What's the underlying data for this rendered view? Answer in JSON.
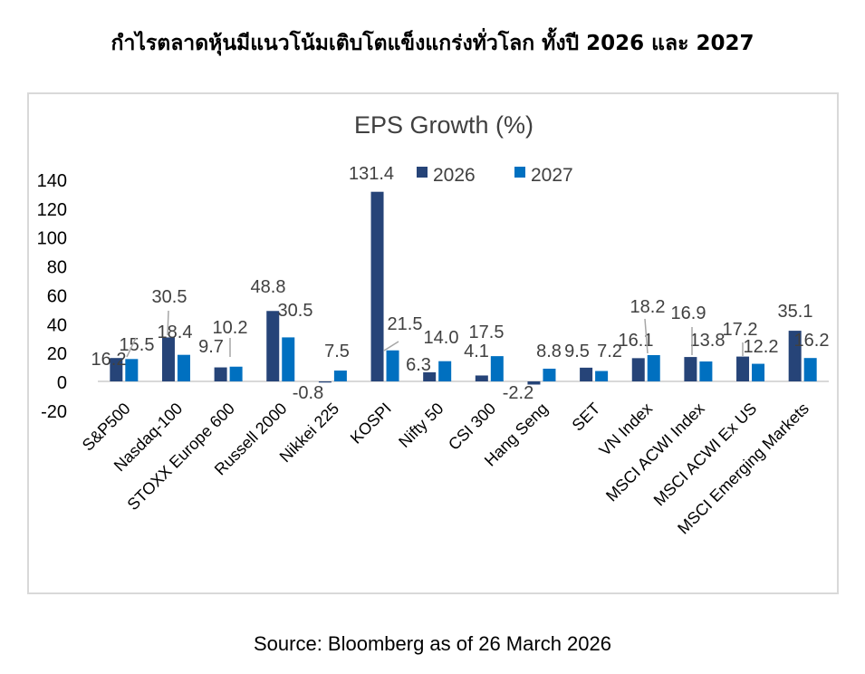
{
  "title": "กำไรตลาดหุ้นมีแนวโน้มเติบโตแข็งแกร่งทั่วโลก ทั้งปี 2026 และ 2027",
  "source": "Source: Bloomberg as of 26 March 2026",
  "chart_data": {
    "type": "bar",
    "title": "EPS Growth (%)",
    "categories": [
      "S&P500",
      "Nasdaq-100",
      "STOXX Europe 600",
      "Russell 2000",
      "Nikkei 225",
      "KOSPI",
      "Nifty 50",
      "CSI 300",
      "Hang Seng",
      "SET",
      "VN Index",
      "MSCI ACWI Index",
      "MSCI ACWI Ex US",
      "MSCI Emerging Markets"
    ],
    "series": [
      {
        "name": "2026",
        "color": "#264478",
        "values": [
          16.2,
          30.5,
          9.7,
          48.8,
          -0.8,
          131.4,
          6.3,
          4.1,
          -2.2,
          9.5,
          16.1,
          16.9,
          17.2,
          35.1
        ]
      },
      {
        "name": "2027",
        "color": "#0070c0",
        "values": [
          15.5,
          18.4,
          10.2,
          30.5,
          7.5,
          21.5,
          14.0,
          17.5,
          8.8,
          7.2,
          18.2,
          13.8,
          12.2,
          16.2
        ]
      }
    ],
    "ylim": [
      -20,
      140
    ],
    "yticks": [
      -20,
      0,
      20,
      40,
      60,
      80,
      100,
      120,
      140
    ],
    "grid": false,
    "legend": "top"
  }
}
